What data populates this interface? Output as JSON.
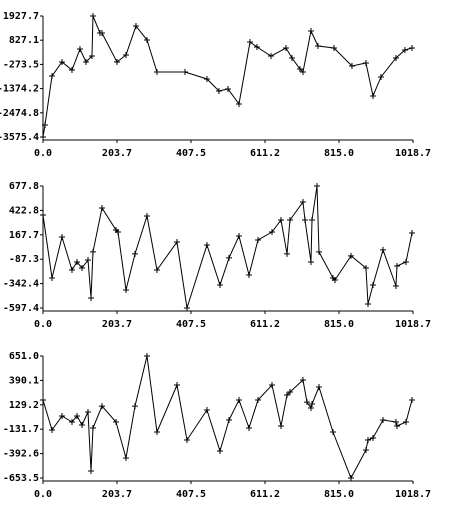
{
  "chart_data": [
    {
      "type": "line",
      "color": "#000000",
      "xlim": [
        0,
        1018.7
      ],
      "ylim": [
        -3575.4,
        1927.7
      ],
      "xticks": [
        {
          "value": 0,
          "label": "0.0"
        },
        203.7,
        407.5,
        611.2,
        {
          "value": 815,
          "label": "815.0"
        },
        1018.7
      ],
      "yticks": [
        1927.7,
        827.1,
        -273.5,
        -1374.2,
        -2474.8,
        -3575.4
      ],
      "x": [
        0,
        5.5,
        24.8,
        52.3,
        79.8,
        101.8,
        118.3,
        134.9,
        137.6,
        156.9,
        162.4,
        203.7,
        228.5,
        256,
        286.3,
        313.8,
        390.9,
        451.4,
        484.5,
        509.3,
        539.6,
        569.9,
        589.1,
        627.7,
        669,
        685.5,
        707.5,
        715.8,
        737.8,
        757.1,
        801.1,
        850.7,
        889.2,
        908.5,
        930.5,
        971.8,
        996.6,
        1015.9
      ],
      "values": [
        -3575.4,
        -3029,
        -801,
        -164,
        -528,
        427,
        -164,
        108,
        1927.7,
        1155,
        1155,
        -164,
        154,
        1473,
        836,
        -619,
        -619,
        -937,
        -1483,
        -1392,
        -2074,
        745,
        518,
        108,
        472,
        18,
        -483,
        -619,
        1245,
        563,
        472,
        -346,
        -210,
        -1711,
        -846,
        18,
        381,
        472
      ]
    },
    {
      "type": "line",
      "color": "#000000",
      "xlim": [
        0,
        1018.7
      ],
      "ylim": [
        -597.4,
        677.8
      ],
      "xticks": [
        {
          "value": 0,
          "label": "0.0"
        },
        203.7,
        407.5,
        611.2,
        {
          "value": 815,
          "label": "815.0"
        },
        1018.7
      ],
      "yticks": [
        677.8,
        422.8,
        167.7,
        -87.3,
        -342.4,
        -597.4
      ],
      "x": [
        0,
        24.8,
        52.3,
        79.8,
        93.6,
        107.4,
        123.9,
        132.2,
        137.6,
        162.4,
        201,
        206.5,
        228.5,
        253.3,
        286.3,
        313.8,
        368.9,
        396.4,
        451.4,
        487.3,
        512.1,
        539.6,
        567.2,
        591.9,
        630.5,
        655.3,
        671.8,
        680,
        715.8,
        721.3,
        737.8,
        740.6,
        754.4,
        759.9,
        798.4,
        803.9,
        848,
        889.2,
        894.8,
        908.5,
        936.1,
        971.8,
        974.6,
        999.4,
        1015.9
      ],
      "values": [
        374.7,
        -283.8,
        144.7,
        -200.2,
        -116.6,
        -179.3,
        -95.6,
        -492.8,
        -11.1,
        447.9,
        217.9,
        197,
        -409.2,
        -32,
        364.2,
        -200.2,
        92.5,
        -597.3,
        61.1,
        -356.9,
        -73.8,
        155.2,
        -252.4,
        113.4,
        197,
        322.4,
        -32,
        322.4,
        510.6,
        322.4,
        -116.6,
        322.4,
        677.8,
        -11.1,
        -283.8,
        -304.7,
        -52.9,
        -179.3,
        -555.5,
        -356.9,
        9.8,
        -367.4,
        -158.4,
        -116.6,
        186.5
      ]
    },
    {
      "type": "line",
      "color": "#000000",
      "xlim": [
        0,
        1018.7
      ],
      "ylim": [
        -653.5,
        651
      ],
      "xticks": [
        {
          "value": 0,
          "label": "0.0"
        },
        203.7,
        407.5,
        611.2,
        {
          "value": 815,
          "label": "815.0"
        },
        1018.7
      ],
      "yticks": [
        {
          "value": 651,
          "label": "651.0"
        },
        390.1,
        129.2,
        -131.7,
        -392.6,
        -653.5
      ],
      "x": [
        0,
        24.8,
        52.3,
        79.8,
        93.6,
        107.4,
        123.9,
        132.2,
        137.6,
        162.4,
        201,
        228.5,
        253.3,
        286.3,
        313.8,
        368.9,
        396.4,
        451.4,
        487.3,
        512.1,
        539.6,
        567.2,
        591.9,
        630.5,
        655.3,
        671.8,
        680,
        715.8,
        726.8,
        737.8,
        740.6,
        759.9,
        798.4,
        848,
        889.2,
        894.8,
        908.5,
        936.1,
        971.8,
        974.6,
        999.4,
        1015.9
      ],
      "values": [
        180.5,
        -140.3,
        9.4,
        -54.7,
        9.4,
        -86.8,
        52.2,
        -578.7,
        -118.9,
        115.4,
        -54.7,
        -439.7,
        115.4,
        651,
        -161.7,
        340.9,
        -247.2,
        73.6,
        -364.8,
        -33.4,
        180.5,
        -118.9,
        180.5,
        340.9,
        -97.5,
        234,
        266,
        394.4,
        158.1,
        94.9,
        137.7,
        319.5,
        -161.7,
        -653.5,
        -354.1,
        -247.2,
        -225.8,
        -33.4,
        -54.7,
        -97.5,
        -54.7,
        180.5
      ]
    }
  ]
}
